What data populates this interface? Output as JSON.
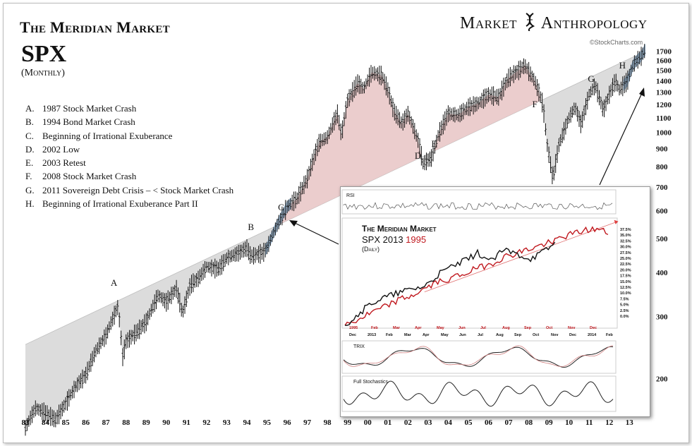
{
  "header": {
    "title": "The Meridian Market",
    "symbol": "SPX",
    "period": "(Monthly)",
    "brand_left": "Market",
    "brand_right": "Anthropology",
    "source": "©StockCharts.com"
  },
  "colors": {
    "price": "#111111",
    "channel_fill": "#dcdcdc",
    "bubble_fill": "#e8c4c4",
    "highlight": "#8db3d6",
    "red_series": "#c0181e"
  },
  "events": [
    {
      "letter": "A.",
      "text": "1987 Stock Market Crash"
    },
    {
      "letter": "B.",
      "text": "1994 Bond Market Crash"
    },
    {
      "letter": "C.",
      "text": "Beginning of Irrational Exuberance"
    },
    {
      "letter": "D.",
      "text": "2002 Low"
    },
    {
      "letter": "E.",
      "text": "2003 Retest"
    },
    {
      "letter": "F.",
      "text": "2008 Stock Market Crash"
    },
    {
      "letter": "G.",
      "text": "2011 Sovereign Debt Crisis – < Stock Market Crash"
    },
    {
      "letter": "H.",
      "text": "Beginning of Irrational Exuberance Part II"
    }
  ],
  "chart_data": [
    {
      "type": "line",
      "title": "SPX (Monthly)",
      "y_scale": "log",
      "ylim": [
        160,
        1800
      ],
      "y_ticks": [
        200,
        300,
        400,
        500,
        600,
        700,
        800,
        900,
        1000,
        1100,
        1200,
        1300,
        1400,
        1500,
        1600,
        1700
      ],
      "x_tick_labels": [
        "83",
        "84",
        "85",
        "86",
        "87",
        "88",
        "89",
        "90",
        "91",
        "92",
        "93",
        "94",
        "95",
        "96",
        "97",
        "98",
        "99",
        "00",
        "01",
        "02",
        "03",
        "04",
        "05",
        "06",
        "07",
        "08",
        "09",
        "10",
        "11",
        "12",
        "13"
      ],
      "series": [
        {
          "values": {
            "x": [
              1983.0,
              1983.5,
              1984.0,
              1984.5,
              1985.0,
              1985.5,
              1986.0,
              1986.5,
              1987.0,
              1987.6,
              1987.83,
              1988.0,
              1988.5,
              1989.0,
              1989.6,
              1990.0,
              1990.5,
              1990.8,
              1991.2,
              1991.6,
              1992.0,
              1992.6,
              1993.0,
              1993.6,
              1994.0,
              1994.2,
              1994.8,
              1995.0,
              1995.5,
              1996.0,
              1996.5,
              1997.0,
              1997.6,
              1998.0,
              1998.5,
              1998.7,
              1999.0,
              1999.5,
              1999.8,
              2000.2,
              2000.7,
              2001.0,
              2001.3,
              2001.7,
              2002.0,
              2002.5,
              2002.75,
              2003.2,
              2003.5,
              2004.0,
              2004.5,
              2005.0,
              2005.5,
              2006.0,
              2006.5,
              2007.0,
              2007.5,
              2007.8,
              2008.3,
              2008.7,
              2008.9,
              2009.2,
              2009.5,
              2010.0,
              2010.3,
              2010.6,
              2011.0,
              2011.3,
              2011.7,
              2012.0,
              2012.3,
              2012.5,
              2012.9,
              2013.2,
              2013.6,
              2013.8
            ],
            "y": [
              145,
              165,
              160,
              153,
              170,
              190,
              205,
              240,
              265,
              320,
              230,
              255,
              270,
              290,
              345,
              330,
              360,
              305,
              370,
              385,
              415,
              410,
              440,
              455,
              470,
              445,
              455,
              470,
              545,
              615,
              650,
              740,
              940,
              970,
              1130,
              980,
              1230,
              1380,
              1330,
              1480,
              1450,
              1320,
              1150,
              1060,
              1130,
              950,
              815,
              850,
              980,
              1130,
              1120,
              1180,
              1210,
              1280,
              1260,
              1430,
              1500,
              1550,
              1400,
              1200,
              930,
              735,
              920,
              1100,
              1180,
              1050,
              1280,
              1360,
              1150,
              1280,
              1400,
              1320,
              1400,
              1560,
              1650,
              1720
            ]
          }
        },
        {
          "name": "channel_lower",
          "values": {
            "x": [
              1983.0,
              2013.8
            ],
            "y": [
              250,
              1700
            ]
          }
        }
      ],
      "annotations": [
        "A",
        "B",
        "C",
        "D",
        "E",
        "F",
        "G",
        "H"
      ]
    },
    {
      "type": "line",
      "title": "The Meridian Market",
      "subtitle": "SPX 2013",
      "subtitle_highlight": "1995",
      "period": "(Daily)",
      "x_tick_labels_top": [
        "1995",
        "Feb",
        "Mar",
        "Apr",
        "May",
        "Jun",
        "Jul",
        "Aug",
        "Sep",
        "Oct",
        "Nov",
        "Dec"
      ],
      "x_tick_labels_bottom": [
        "Dec",
        "2013",
        "Feb",
        "Mar",
        "Apr",
        "May",
        "Jun",
        "Jul",
        "Aug",
        "Sep",
        "Oct",
        "Nov",
        "Dec",
        "2014",
        "Feb"
      ],
      "y_tick_labels": [
        "37.5%",
        "35.0%",
        "32.5%",
        "30.0%",
        "27.5%",
        "25.0%",
        "22.5%",
        "20.0%",
        "17.5%",
        "15.0%",
        "12.5%",
        "10.0%",
        "7.5%",
        "5.0%",
        "2.5%",
        "0.0%"
      ],
      "ylim": [
        0,
        37.5
      ],
      "series": [
        {
          "values": {
            "x": [
              0,
              0.05,
              0.1,
              0.15,
              0.2,
              0.25,
              0.3,
              0.35,
              0.4,
              0.45,
              0.5,
              0.55,
              0.6,
              0.65,
              0.7,
              0.75,
              0.8,
              0.85,
              0.9,
              0.95,
              1.0
            ],
            "y": [
              0,
              2,
              4.5,
              6.5,
              9,
              10.5,
              13,
              15.5,
              17,
              18.5,
              20.5,
              22,
              24.5,
              26,
              27.5,
              29,
              31,
              32.5,
              34,
              34.5,
              33
            ]
          }
        },
        {
          "values": {
            "x": [
              0,
              0.05,
              0.1,
              0.15,
              0.2,
              0.25,
              0.3,
              0.35,
              0.4,
              0.45,
              0.5,
              0.55,
              0.6,
              0.65,
              0.7,
              0.75,
              0.8
            ],
            "y": [
              0,
              4,
              8,
              10,
              11.5,
              13,
              14,
              18,
              21,
              23,
              26,
              23,
              27,
              25.5,
              24,
              26.5,
              30
            ]
          }
        }
      ],
      "panels": [
        "RSI",
        "TRIX",
        "Full Stochastics"
      ]
    }
  ]
}
